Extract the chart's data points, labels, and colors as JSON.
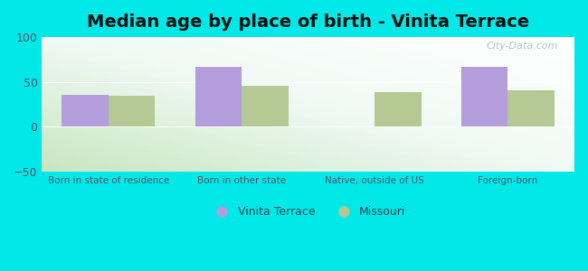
{
  "title": "Median age by place of birth - Vinita Terrace",
  "categories": [
    "Born in state of residence",
    "Born in other state",
    "Native, outside of US",
    "Foreign-born"
  ],
  "vinita_terrace": [
    36,
    67,
    0.5,
    67
  ],
  "missouri": [
    35,
    46,
    39,
    41
  ],
  "vinita_color": "#b39ddb",
  "missouri_color": "#b5c994",
  "figure_bg": "#00e8e8",
  "ylim": [
    -50,
    100
  ],
  "yticks": [
    -50,
    0,
    50,
    100
  ],
  "bar_width": 0.35,
  "legend_labels": [
    "Vinita Terrace",
    "Missouri"
  ],
  "watermark": "City-Data.com",
  "title_fontsize": 14,
  "tick_fontsize": 7.5,
  "ytick_fontsize": 9
}
